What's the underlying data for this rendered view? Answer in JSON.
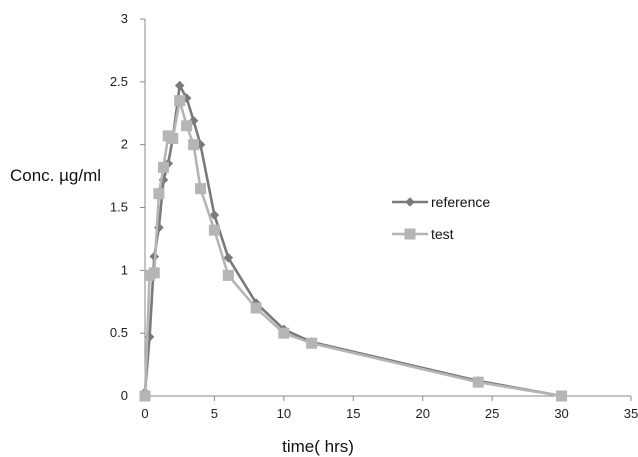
{
  "chart_data": {
    "type": "line",
    "title": "",
    "xlabel": "time( hrs)",
    "ylabel": "Conc. µg/ml",
    "xlim": [
      0,
      35
    ],
    "ylim": [
      0,
      3
    ],
    "xticks": [
      0,
      5,
      10,
      15,
      20,
      25,
      30,
      35
    ],
    "yticks": [
      0,
      0.5,
      1,
      1.5,
      2,
      2.5,
      3
    ],
    "ytick_labels": [
      "0",
      "0.5",
      "1",
      "1.5",
      "2",
      "2.5",
      "3"
    ],
    "grid": false,
    "legend_position": "right",
    "series": [
      {
        "name": "reference",
        "marker": "diamond",
        "color": "#7a7a7a",
        "x": [
          0,
          0.33,
          0.67,
          1,
          1.33,
          1.67,
          2,
          2.5,
          3,
          3.5,
          4,
          5,
          6,
          8,
          10,
          12,
          24,
          30
        ],
        "y": [
          0.03,
          0.47,
          1.11,
          1.34,
          1.72,
          1.85,
          2.05,
          2.47,
          2.37,
          2.19,
          2.0,
          1.44,
          1.1,
          0.74,
          0.53,
          0.43,
          0.12,
          0.0
        ]
      },
      {
        "name": "test",
        "marker": "square",
        "color": "#b5b5b5",
        "x": [
          0,
          0.33,
          0.67,
          1,
          1.33,
          1.67,
          2,
          2.5,
          3,
          3.5,
          4,
          5,
          6,
          8,
          10,
          12,
          24,
          30
        ],
        "y": [
          0.0,
          0.96,
          0.98,
          1.61,
          1.82,
          2.07,
          2.05,
          2.35,
          2.15,
          2.0,
          1.65,
          1.32,
          0.96,
          0.7,
          0.5,
          0.42,
          0.11,
          0.0
        ]
      }
    ]
  }
}
